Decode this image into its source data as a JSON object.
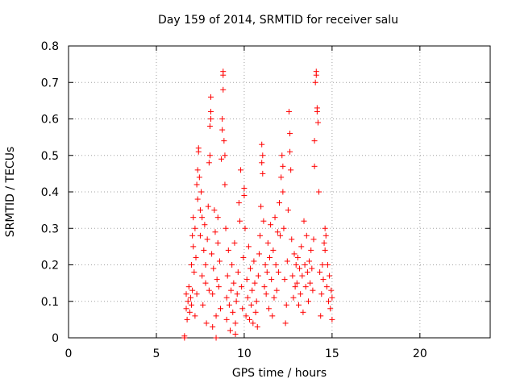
{
  "chart_data": {
    "type": "scatter",
    "title": "Day 159 of 2014, SRMTID for receiver salu",
    "xlabel": "GPS time / hours",
    "ylabel": "SRMTID / TECUs",
    "xlim": [
      0,
      24
    ],
    "ylim": [
      0,
      0.8
    ],
    "xticks": [
      0,
      5,
      10,
      15,
      20
    ],
    "yticks": [
      0,
      0.1,
      0.2,
      0.3,
      0.4,
      0.5,
      0.6,
      0.7,
      0.8
    ],
    "grid": true,
    "marker": "+",
    "color": "#ff0000",
    "series": [
      {
        "name": "SRMTID",
        "points": [
          [
            6.6,
            0.0
          ],
          [
            6.6,
            0.005
          ],
          [
            6.7,
            0.08
          ],
          [
            6.7,
            0.12
          ],
          [
            6.75,
            0.05
          ],
          [
            6.8,
            0.1
          ],
          [
            6.85,
            0.14
          ],
          [
            6.9,
            0.07
          ],
          [
            6.95,
            0.11
          ],
          [
            7.0,
            0.09
          ],
          [
            7.0,
            0.2
          ],
          [
            7.05,
            0.28
          ],
          [
            7.05,
            0.13
          ],
          [
            7.1,
            0.33
          ],
          [
            7.1,
            0.25
          ],
          [
            7.15,
            0.18
          ],
          [
            7.2,
            0.06
          ],
          [
            7.2,
            0.3
          ],
          [
            7.25,
            0.22
          ],
          [
            7.3,
            0.12
          ],
          [
            7.3,
            0.42
          ],
          [
            7.35,
            0.46
          ],
          [
            7.35,
            0.38
          ],
          [
            7.4,
            0.51
          ],
          [
            7.4,
            0.52
          ],
          [
            7.45,
            0.44
          ],
          [
            7.5,
            0.35
          ],
          [
            7.5,
            0.28
          ],
          [
            7.55,
            0.4
          ],
          [
            7.6,
            0.33
          ],
          [
            7.6,
            0.17
          ],
          [
            7.65,
            0.09
          ],
          [
            7.7,
            0.24
          ],
          [
            7.75,
            0.31
          ],
          [
            7.8,
            0.2
          ],
          [
            7.8,
            0.15
          ],
          [
            7.85,
            0.04
          ],
          [
            7.9,
            0.27
          ],
          [
            7.95,
            0.36
          ],
          [
            8.0,
            0.13
          ],
          [
            8.0,
            0.48
          ],
          [
            8.05,
            0.5
          ],
          [
            8.05,
            0.58
          ],
          [
            8.1,
            0.6
          ],
          [
            8.1,
            0.62
          ],
          [
            8.1,
            0.66
          ],
          [
            8.15,
            0.23
          ],
          [
            8.2,
            0.12
          ],
          [
            8.2,
            0.03
          ],
          [
            8.25,
            0.19
          ],
          [
            8.3,
            0.35
          ],
          [
            8.35,
            0.29
          ],
          [
            8.4,
            0.0
          ],
          [
            8.4,
            0.06
          ],
          [
            8.45,
            0.16
          ],
          [
            8.5,
            0.33
          ],
          [
            8.5,
            0.26
          ],
          [
            8.55,
            0.14
          ],
          [
            8.6,
            0.21
          ],
          [
            8.65,
            0.08
          ],
          [
            8.7,
            0.49
          ],
          [
            8.75,
            0.6
          ],
          [
            8.75,
            0.57
          ],
          [
            8.8,
            0.68
          ],
          [
            8.8,
            0.72
          ],
          [
            8.8,
            0.73
          ],
          [
            8.85,
            0.54
          ],
          [
            8.9,
            0.5
          ],
          [
            8.9,
            0.42
          ],
          [
            8.95,
            0.3
          ],
          [
            9.0,
            0.11
          ],
          [
            9.0,
            0.05
          ],
          [
            9.05,
            0.17
          ],
          [
            9.1,
            0.24
          ],
          [
            9.15,
            0.09
          ],
          [
            9.2,
            0.02
          ],
          [
            9.25,
            0.13
          ],
          [
            9.3,
            0.2
          ],
          [
            9.35,
            0.07
          ],
          [
            9.4,
            0.15
          ],
          [
            9.45,
            0.26
          ],
          [
            9.5,
            0.01
          ],
          [
            9.5,
            0.04
          ],
          [
            9.55,
            0.1
          ],
          [
            9.6,
            0.12
          ],
          [
            9.65,
            0.18
          ],
          [
            9.7,
            0.37
          ],
          [
            9.75,
            0.32
          ],
          [
            9.8,
            0.46
          ],
          [
            9.85,
            0.14
          ],
          [
            9.9,
            0.08
          ],
          [
            9.95,
            0.22
          ],
          [
            10.0,
            0.39
          ],
          [
            10.0,
            0.41
          ],
          [
            10.05,
            0.3
          ],
          [
            10.1,
            0.06
          ],
          [
            10.15,
            0.16
          ],
          [
            10.2,
            0.11
          ],
          [
            10.25,
            0.25
          ],
          [
            10.3,
            0.05
          ],
          [
            10.35,
            0.19
          ],
          [
            10.4,
            0.09
          ],
          [
            10.45,
            0.13
          ],
          [
            10.5,
            0.04
          ],
          [
            10.55,
            0.21
          ],
          [
            10.6,
            0.15
          ],
          [
            10.65,
            0.07
          ],
          [
            10.7,
            0.1
          ],
          [
            10.75,
            0.03
          ],
          [
            10.8,
            0.17
          ],
          [
            10.85,
            0.23
          ],
          [
            10.9,
            0.28
          ],
          [
            10.95,
            0.36
          ],
          [
            11.0,
            0.53
          ],
          [
            11.0,
            0.48
          ],
          [
            11.05,
            0.5
          ],
          [
            11.05,
            0.45
          ],
          [
            11.1,
            0.32
          ],
          [
            11.15,
            0.14
          ],
          [
            11.2,
            0.2
          ],
          [
            11.25,
            0.12
          ],
          [
            11.3,
            0.18
          ],
          [
            11.35,
            0.26
          ],
          [
            11.4,
            0.08
          ],
          [
            11.45,
            0.22
          ],
          [
            11.5,
            0.31
          ],
          [
            11.55,
            0.16
          ],
          [
            11.6,
            0.06
          ],
          [
            11.65,
            0.24
          ],
          [
            11.7,
            0.11
          ],
          [
            11.75,
            0.33
          ],
          [
            11.8,
            0.2
          ],
          [
            11.85,
            0.13
          ],
          [
            11.9,
            0.29
          ],
          [
            11.95,
            0.18
          ],
          [
            12.0,
            0.37
          ],
          [
            12.05,
            0.28
          ],
          [
            12.1,
            0.44
          ],
          [
            12.15,
            0.5
          ],
          [
            12.2,
            0.47
          ],
          [
            12.2,
            0.4
          ],
          [
            12.25,
            0.3
          ],
          [
            12.3,
            0.16
          ],
          [
            12.35,
            0.04
          ],
          [
            12.4,
            0.09
          ],
          [
            12.45,
            0.21
          ],
          [
            12.5,
            0.35
          ],
          [
            12.55,
            0.62
          ],
          [
            12.6,
            0.56
          ],
          [
            12.6,
            0.51
          ],
          [
            12.65,
            0.46
          ],
          [
            12.7,
            0.27
          ],
          [
            12.75,
            0.17
          ],
          [
            12.8,
            0.11
          ],
          [
            12.85,
            0.23
          ],
          [
            12.9,
            0.14
          ],
          [
            12.95,
            0.2
          ],
          [
            13.0,
            0.15
          ],
          [
            13.05,
            0.22
          ],
          [
            13.1,
            0.09
          ],
          [
            13.15,
            0.19
          ],
          [
            13.2,
            0.12
          ],
          [
            13.25,
            0.25
          ],
          [
            13.3,
            0.17
          ],
          [
            13.35,
            0.07
          ],
          [
            13.4,
            0.32
          ],
          [
            13.45,
            0.2
          ],
          [
            13.5,
            0.14
          ],
          [
            13.55,
            0.28
          ],
          [
            13.6,
            0.18
          ],
          [
            13.65,
            0.1
          ],
          [
            13.7,
            0.21
          ],
          [
            13.75,
            0.15
          ],
          [
            13.8,
            0.24
          ],
          [
            13.85,
            0.19
          ],
          [
            13.9,
            0.13
          ],
          [
            13.95,
            0.27
          ],
          [
            14.0,
            0.54
          ],
          [
            14.0,
            0.47
          ],
          [
            14.05,
            0.7
          ],
          [
            14.1,
            0.73
          ],
          [
            14.1,
            0.72
          ],
          [
            14.15,
            0.63
          ],
          [
            14.15,
            0.62
          ],
          [
            14.2,
            0.59
          ],
          [
            14.25,
            0.4
          ],
          [
            14.3,
            0.18
          ],
          [
            14.35,
            0.06
          ],
          [
            14.4,
            0.12
          ],
          [
            14.45,
            0.2
          ],
          [
            14.5,
            0.16
          ],
          [
            14.55,
            0.26
          ],
          [
            14.6,
            0.3
          ],
          [
            14.6,
            0.24
          ],
          [
            14.65,
            0.28
          ],
          [
            14.7,
            0.14
          ],
          [
            14.75,
            0.2
          ],
          [
            14.8,
            0.1
          ],
          [
            14.85,
            0.17
          ],
          [
            14.9,
            0.08
          ],
          [
            14.95,
            0.13
          ],
          [
            15.0,
            0.11
          ],
          [
            15.0,
            0.05
          ]
        ]
      }
    ]
  }
}
